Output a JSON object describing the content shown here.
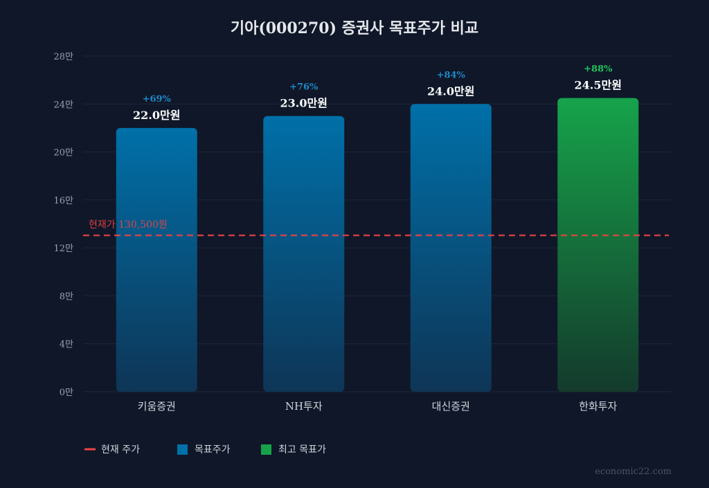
{
  "chart_data": {
    "type": "bar",
    "title": "기아(000270) 증권사 목표주가 비교",
    "categories": [
      "키움증권",
      "NH투자",
      "대신증권",
      "한화투자"
    ],
    "values": [
      220000,
      230000,
      240000,
      245000
    ],
    "value_labels": [
      "22.0만원",
      "23.0만원",
      "24.0만원",
      "24.5만원"
    ],
    "upside_labels": [
      "+69%",
      "+76%",
      "+84%",
      "+88%"
    ],
    "highlight_index": 3,
    "ylim": [
      0,
      280000
    ],
    "yticks": [
      0,
      40000,
      80000,
      120000,
      160000,
      200000,
      240000,
      280000
    ],
    "ytick_labels": [
      "0만",
      "4만",
      "8만",
      "12만",
      "16만",
      "20만",
      "24만",
      "28만"
    ],
    "grid": true,
    "reference_line": {
      "value": 130500,
      "label": "현재가 130,500원",
      "color": "#ef4444"
    },
    "colors": {
      "target": "#0070a8",
      "highest": "#16a34a",
      "upside_target": "#1e88c7",
      "upside_highest": "#22c55e",
      "background": "#0f1729"
    },
    "legend": {
      "placement": "bottom-left",
      "items": [
        {
          "label": "현재 주가",
          "kind": "line",
          "color": "#ef4444"
        },
        {
          "label": "목표주가",
          "kind": "box",
          "color": "#0070a8"
        },
        {
          "label": "최고 목표가",
          "kind": "box",
          "color": "#16a34a"
        }
      ]
    },
    "watermark": "economic22.com"
  }
}
